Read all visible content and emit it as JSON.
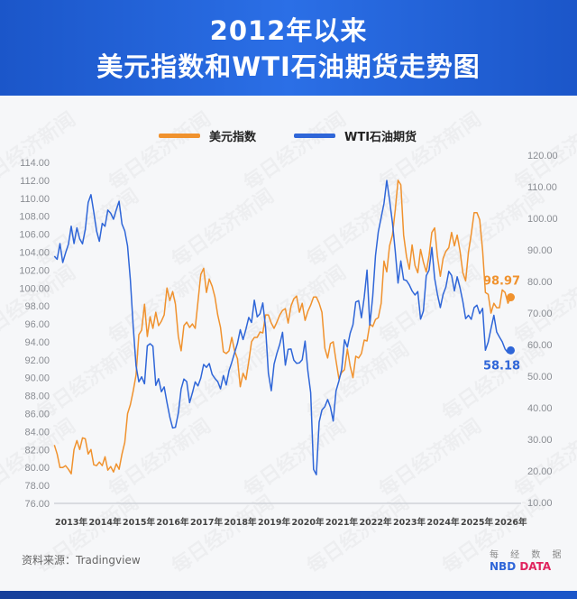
{
  "title_line1": "2012年以来",
  "title_line2": "美元指数和WTI石油期货走势图",
  "watermark": "每日经济新闻",
  "source": "资料来源：Tradingview",
  "logo": {
    "cn": "每 经 数 据",
    "en_a": "NBD",
    "en_b": "DATA"
  },
  "chart_data": {
    "type": "line",
    "title": "2012年以来美元指数和WTI石油期货走势图",
    "x_tick_labels": [
      "2013年",
      "2014年",
      "2015年",
      "2016年",
      "2017年",
      "2018年",
      "2019年",
      "2020年",
      "2021年",
      "2022年",
      "2023年",
      "2024年",
      "2025年",
      "2026年"
    ],
    "left_axis": {
      "range": [
        76,
        114
      ],
      "ticks": [
        "114.00",
        "112.00",
        "110.00",
        "108.00",
        "106.00",
        "104.00",
        "102.00",
        "100.00",
        "98.00",
        "96.00",
        "94.00",
        "92.00",
        "90.00",
        "88.00",
        "86.00",
        "84.00",
        "82.00",
        "80.00",
        "78.00",
        "76.00"
      ]
    },
    "right_axis": {
      "range": [
        10,
        120
      ],
      "ticks": [
        "120.00",
        "110.00",
        "100.00",
        "90.00",
        "80.00",
        "70.00",
        "60.00",
        "50.00",
        "40.00",
        "30.00",
        "20.00",
        "10.00"
      ]
    },
    "legend_placement": "top-center",
    "grid": false,
    "x_start": "2012-07",
    "x_step": "month",
    "series": [
      {
        "name": "美元指数",
        "axis": "left",
        "color": "#f0922e",
        "last_label": "98.97",
        "values": [
          82.5,
          81.5,
          80,
          80,
          80.2,
          79.8,
          79.3,
          82,
          83,
          82,
          83.3,
          83.2,
          81.5,
          82,
          80.3,
          80.2,
          80.6,
          80.2,
          81.2,
          79.7,
          80.1,
          79.5,
          80.4,
          79.8,
          81.5,
          82.8,
          86,
          87,
          88.5,
          90.3,
          94.8,
          95.3,
          98.2,
          94.6,
          96.8,
          95.5,
          97.3,
          95.8,
          96.3,
          97,
          100,
          98.6,
          99.6,
          98.2,
          94.6,
          93,
          95.8,
          96.2,
          95.6,
          96,
          95.5,
          98.5,
          101.5,
          102.2,
          99.5,
          101,
          100.2,
          99,
          97,
          95.6,
          92.9,
          92.7,
          93,
          94.5,
          93,
          92.1,
          89,
          90.5,
          89.8,
          91.8,
          94,
          94.5,
          94.5,
          95.1,
          95,
          97,
          97,
          96.1,
          95.5,
          96.2,
          97,
          97.5,
          97.7,
          96.1,
          98,
          98.8,
          99.1,
          97.3,
          98.3,
          96.4,
          97.4,
          98.1,
          99,
          99,
          98.3,
          97.3,
          93.3,
          92.2,
          93.8,
          94,
          91.9,
          89.9,
          90.6,
          90.9,
          93.2,
          91.3,
          90,
          92.4,
          92.2,
          92.7,
          94.2,
          94.1,
          96,
          95.7,
          96.5,
          96.7,
          98.3,
          103,
          101.8,
          104.7,
          105.9,
          108.7,
          112,
          111.5,
          105.9,
          103.5,
          102.1,
          104.8,
          102.5,
          101.7,
          104.3,
          102.9,
          101.8,
          103.6,
          106.2,
          106.7,
          103.5,
          101.3,
          103.3,
          104.1,
          104.5,
          106.2,
          104.7,
          105.9,
          104.1,
          101.7,
          100.8,
          104,
          106,
          108.4,
          108.4,
          107.6,
          104.2,
          99.5,
          99.3,
          97.2,
          98.3,
          97.8,
          97.8,
          99.8,
          99.5,
          98.3,
          98.97
        ]
      },
      {
        "name": "WTI石油期货",
        "axis": "right",
        "color": "#2f66d8",
        "last_label": "58.18",
        "values": [
          88,
          87,
          92,
          86,
          89,
          91.8,
          97.5,
          92,
          97,
          93.5,
          91.9,
          96.5,
          105,
          107.5,
          102,
          96,
          92.7,
          98.4,
          97.5,
          102.6,
          101.6,
          99.7,
          102.7,
          105.4,
          98.2,
          96,
          91.2,
          80.5,
          66,
          53.3,
          48.2,
          49.8,
          47.6,
          59.6,
          60.3,
          59.5,
          47.1,
          49.2,
          45.1,
          46.6,
          41.7,
          37,
          33.6,
          33.8,
          38.3,
          45.9,
          49.1,
          48.3,
          41.6,
          44.7,
          48.2,
          46.9,
          49.4,
          53.7,
          52.8,
          54,
          50.6,
          49.3,
          48.3,
          46,
          50.2,
          47.2,
          51.7,
          54.4,
          57.4,
          60.4,
          64.7,
          61.6,
          64.9,
          68.6,
          67,
          74.1,
          68.8,
          69.8,
          73.2,
          65.3,
          50.9,
          45.4,
          53.8,
          57.2,
          60.1,
          63.9,
          53.5,
          58.5,
          58.6,
          55.1,
          54.1,
          54.2,
          55.2,
          61.1,
          51.6,
          44.8,
          20.5,
          18.8,
          35.5,
          39.3,
          40.3,
          42.6,
          40.2,
          35.8,
          45.3,
          48.5,
          52.2,
          61.5,
          59.2,
          63.6,
          66.3,
          73.5,
          73.9,
          68.5,
          75,
          83.6,
          66.2,
          75.2,
          88.2,
          95.7,
          100.3,
          104.7,
          112,
          105.8,
          98.6,
          89.6,
          79.5,
          86.5,
          80.6,
          80.3,
          78.9,
          77,
          75.7,
          76.8,
          68.1,
          70.6,
          81.8,
          83.6,
          90.8,
          81,
          75.9,
          71.7,
          75.9,
          78.3,
          83.2,
          81.9,
          77,
          81.5,
          77.9,
          73.6,
          68.2,
          69.3,
          68,
          71.7,
          72.5,
          69.8,
          71.5,
          58.2,
          60.8,
          65.1,
          69.3,
          64,
          62.4,
          60.9,
          58.6,
          57.4,
          58.18
        ]
      }
    ]
  }
}
